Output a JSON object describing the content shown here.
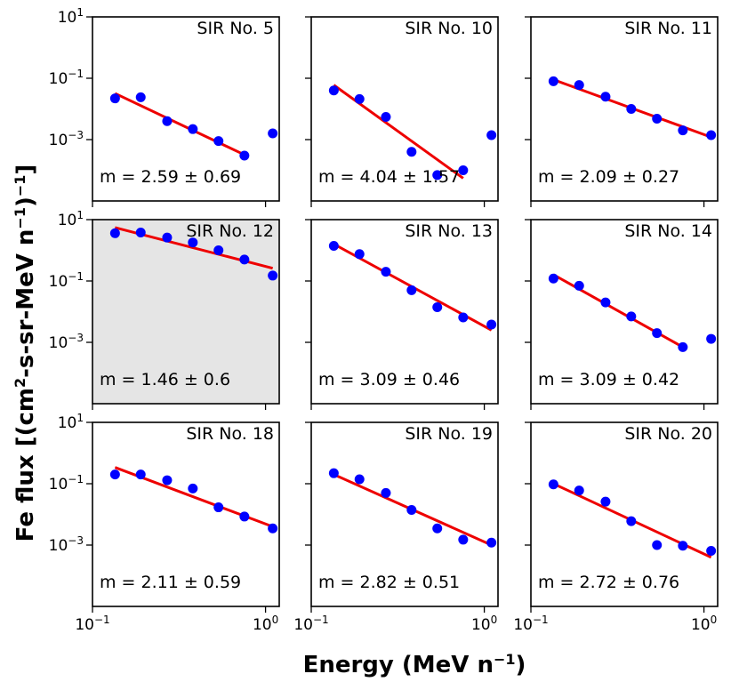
{
  "figure": {
    "ylabel_prefix": "Fe flux [(cm",
    "ylabel_sup1": "2",
    "ylabel_middle": "-s-sr-MeV n",
    "ylabel_sup2": "−1",
    "ylabel_close": ")",
    "ylabel_sup3": "−1",
    "ylabel_end": "]",
    "xlabel_prefix": "Energy (MeV n",
    "xlabel_sup": "−1",
    "xlabel_end": ")"
  },
  "colors": {
    "data_points": "#0000ff",
    "fit_line": "#ee0000",
    "highlight_bg": "#e5e5e5"
  },
  "chart_data": {
    "type": "scatter",
    "layout": "3x3 grid",
    "x_scale": "log",
    "y_scale": "log",
    "xlim": [
      0.1,
      1.2
    ],
    "ylim": [
      1e-05,
      10
    ],
    "x_tick_values": [
      0.1,
      1
    ],
    "x_tick_base": "10",
    "x_tick_exponents": [
      "−1",
      "0"
    ],
    "y_tick_values": [
      10,
      0.1,
      0.001
    ],
    "y_tick_base": "10",
    "y_tick_exponents": [
      "1",
      "−1",
      "−3"
    ],
    "energies": [
      0.135,
      0.19,
      0.27,
      0.38,
      0.535,
      0.755,
      1.1
    ],
    "panels": [
      {
        "title": "SIR No. 5",
        "slope_label": "m = 2.59 ± 0.69",
        "highlight": false,
        "flux": [
          0.022,
          0.024,
          0.004,
          0.0022,
          0.0009,
          0.0003,
          0.0016
        ],
        "fit": [
          [
            0.135,
            0.032
          ],
          [
            0.755,
            0.00032
          ]
        ]
      },
      {
        "title": "SIR No. 10",
        "slope_label": "m = 4.04 ± 1.57",
        "highlight": false,
        "flux": [
          0.04,
          0.021,
          0.0055,
          0.0004,
          7e-05,
          0.0001,
          0.0014
        ],
        "fit": [
          [
            0.135,
            0.06
          ],
          [
            0.755,
            5.5e-05
          ]
        ]
      },
      {
        "title": "SIR No. 11",
        "slope_label": "m = 2.09 ± 0.27",
        "highlight": false,
        "flux": [
          0.08,
          0.06,
          0.025,
          0.01,
          0.0048,
          0.002,
          0.0014
        ],
        "fit": [
          [
            0.135,
            0.09
          ],
          [
            1.1,
            0.0012
          ]
        ]
      },
      {
        "title": "SIR No. 12",
        "slope_label": "m = 1.46 ± 0.6",
        "highlight": true,
        "flux": [
          3.6,
          3.8,
          2.6,
          1.8,
          1.0,
          0.5,
          0.15
        ],
        "fit": [
          [
            0.135,
            5.5
          ],
          [
            1.1,
            0.26
          ]
        ]
      },
      {
        "title": "SIR No. 13",
        "slope_label": "m = 3.09 ± 0.46",
        "highlight": false,
        "flux": [
          1.4,
          0.75,
          0.2,
          0.05,
          0.014,
          0.0065,
          0.0038
        ],
        "fit": [
          [
            0.135,
            1.6
          ],
          [
            1.1,
            0.0025
          ]
        ]
      },
      {
        "title": "SIR No. 14",
        "slope_label": "m = 3.09 ± 0.42",
        "highlight": false,
        "flux": [
          0.12,
          0.07,
          0.02,
          0.007,
          0.002,
          0.0007,
          0.0013
        ],
        "fit": [
          [
            0.135,
            0.16
          ],
          [
            0.755,
            0.0007
          ]
        ]
      },
      {
        "title": "SIR No. 18",
        "slope_label": "m = 2.11 ± 0.59",
        "highlight": false,
        "flux": [
          0.2,
          0.2,
          0.13,
          0.07,
          0.017,
          0.0085,
          0.0035
        ],
        "fit": [
          [
            0.135,
            0.34
          ],
          [
            1.1,
            0.004
          ]
        ]
      },
      {
        "title": "SIR No. 19",
        "slope_label": "m = 2.82 ± 0.51",
        "highlight": false,
        "flux": [
          0.22,
          0.14,
          0.05,
          0.014,
          0.0035,
          0.0015,
          0.0012
        ],
        "fit": [
          [
            0.135,
            0.2
          ],
          [
            1.1,
            0.001
          ]
        ]
      },
      {
        "title": "SIR No. 20",
        "slope_label": "m = 2.72 ± 0.76",
        "highlight": false,
        "flux": [
          0.095,
          0.06,
          0.026,
          0.006,
          0.001,
          0.00095,
          0.00065
        ],
        "fit": [
          [
            0.135,
            0.1
          ],
          [
            1.1,
            0.0004
          ]
        ]
      }
    ]
  }
}
